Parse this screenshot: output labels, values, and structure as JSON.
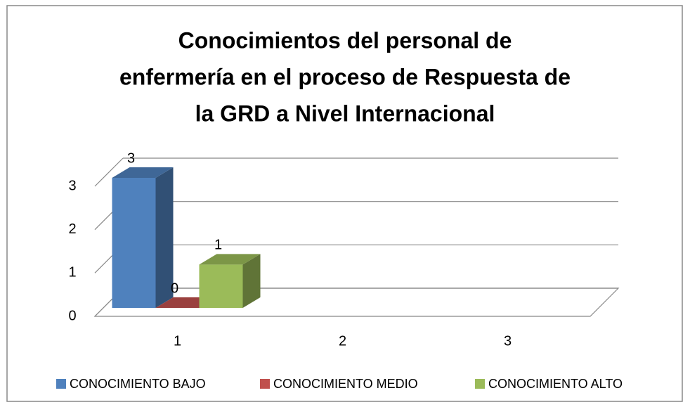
{
  "chart_data": {
    "type": "bar3d",
    "title": [
      "Conocimientos del personal de",
      "enfermería en el proceso de Respuesta de",
      "la GRD a Nivel Internacional"
    ],
    "categories": [
      "1",
      "2",
      "3"
    ],
    "series": [
      {
        "name": "CONOCIMIENTO BAJO",
        "color": "#4f81bd",
        "values": [
          3,
          null,
          null
        ]
      },
      {
        "name": "CONOCIMIENTO MEDIO",
        "color": "#c0504d",
        "values": [
          0,
          null,
          null
        ]
      },
      {
        "name": "CONOCIMIENTO ALTO",
        "color": "#9bbb59",
        "values": [
          1,
          null,
          null
        ]
      }
    ],
    "ylim": [
      0,
      3
    ],
    "yticks": [
      0,
      1,
      2,
      3
    ],
    "grid": true,
    "data_labels": true,
    "legend": "bottom"
  }
}
